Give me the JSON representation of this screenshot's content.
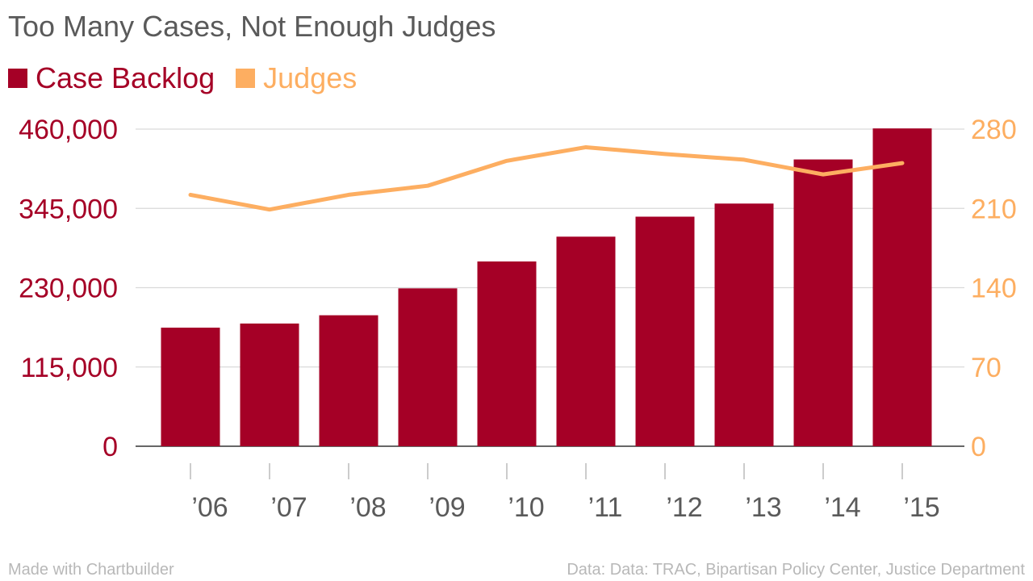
{
  "chart_data": {
    "type": "bar",
    "title": "Too Many Cases, Not Enough Judges",
    "categories": [
      "’06",
      "’07",
      "’08",
      "’09",
      "’10",
      "’11",
      "’12",
      "’13",
      "’14",
      "’15"
    ],
    "series": [
      {
        "name": "Case Backlog",
        "type": "bar",
        "axis": "left",
        "color": "#a50026",
        "values": [
          172000,
          178000,
          190000,
          229000,
          268000,
          304000,
          333000,
          352000,
          416000,
          461000
        ]
      },
      {
        "name": "Judges",
        "type": "line",
        "axis": "right",
        "color": "#fdae61",
        "values": [
          222,
          209,
          222,
          230,
          252,
          264,
          258,
          253,
          240,
          250
        ]
      }
    ],
    "y_left": {
      "min": 0,
      "max": 460000,
      "ticks": [
        "0",
        "115,000",
        "230,000",
        "345,000",
        "460,000"
      ],
      "tick_values": [
        0,
        115000,
        230000,
        345000,
        460000
      ],
      "color": "#a50026"
    },
    "y_right": {
      "min": 0,
      "max": 280,
      "ticks": [
        "0",
        "70",
        "140",
        "210",
        "280"
      ],
      "tick_values": [
        0,
        70,
        140,
        210,
        280
      ],
      "color": "#fdae61"
    },
    "grid": true,
    "legend_position": "top-left"
  },
  "footer": {
    "left": "Made with Chartbuilder",
    "right": "Data: Data: TRAC, Bipartisan Policy Center, Justice Department"
  }
}
